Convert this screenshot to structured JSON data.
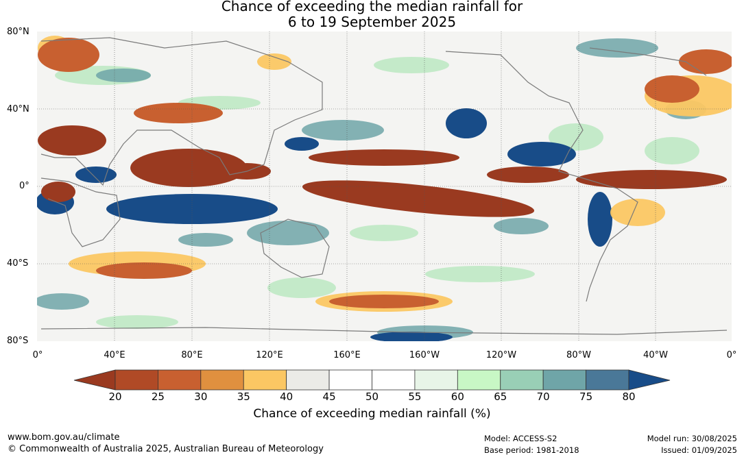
{
  "title": {
    "line1": "Chance of exceeding the median rainfall for",
    "line2": "6 to 19 September 2025"
  },
  "map": {
    "lat_labels": [
      "80°N",
      "40°N",
      "0°",
      "40°S",
      "80°S"
    ],
    "lon_labels": [
      "0°",
      "40°E",
      "80°E",
      "120°E",
      "160°E",
      "160°W",
      "120°W",
      "80°W",
      "40°W",
      "0°"
    ]
  },
  "colorbar": {
    "ticks": [
      "20",
      "25",
      "30",
      "35",
      "40",
      "45",
      "50",
      "55",
      "60",
      "65",
      "70",
      "75",
      "80"
    ],
    "colors": [
      "#9a3a20",
      "#b04a26",
      "#c86030",
      "#e0903f",
      "#fbc763",
      "#ebebe7",
      "#ffffff",
      "#ffffff",
      "#e8f5e8",
      "#c8f7c5",
      "#99cfb6",
      "#6fa5a8",
      "#4a7898",
      "#184c88"
    ],
    "label": "Chance of exceeding median rainfall (%)"
  },
  "footer": {
    "url": "www.bom.gov.au/climate",
    "copyright": "© Commonwealth of Australia 2025, Australian Bureau of Meteorology",
    "model": "Model: ACCESS-S2",
    "base_period": "Base period: 1981-2018",
    "model_run": "Model run: 30/08/2025",
    "issued": "Issued: 01/09/2025"
  }
}
